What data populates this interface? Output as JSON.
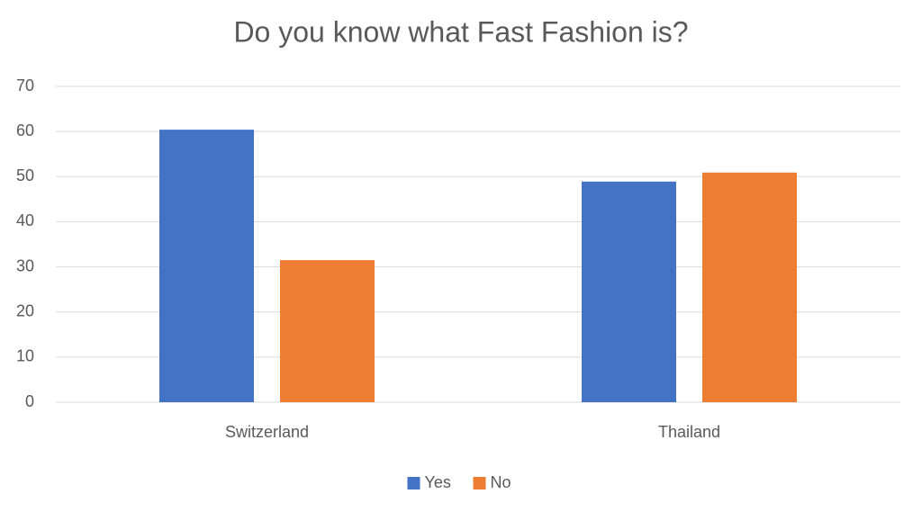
{
  "chart_data": {
    "type": "bar",
    "title": "Do you know what Fast Fashion is?",
    "categories": [
      "Switzerland",
      "Thailand"
    ],
    "series": [
      {
        "name": "Yes",
        "color": "#4472c4",
        "values": [
          60.4,
          48.9
        ]
      },
      {
        "name": "No",
        "color": "#ed7d31",
        "values": [
          31.5,
          50.9
        ]
      }
    ],
    "ylim": [
      0,
      70
    ],
    "yticks": [
      0,
      10,
      20,
      30,
      40,
      50,
      60,
      70
    ],
    "grid": true,
    "legend": "bottom"
  }
}
